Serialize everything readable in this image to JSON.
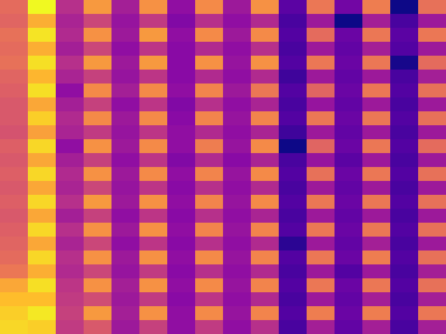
{
  "chart_data": {
    "type": "heatmap",
    "color": "plasma",
    "tick_labels": false,
    "cells": [
      [
        0.62,
        1.0,
        0.42,
        0.76,
        0.36,
        0.74,
        0.3,
        0.72,
        0.34,
        0.74,
        0.16,
        0.66,
        0.22,
        0.68,
        0.0,
        0.64
      ],
      [
        0.6,
        0.82,
        0.38,
        0.5,
        0.32,
        0.46,
        0.26,
        0.42,
        0.3,
        0.4,
        0.12,
        0.34,
        0.0,
        0.36,
        0.12,
        0.34
      ],
      [
        0.64,
        0.95,
        0.4,
        0.74,
        0.34,
        0.76,
        0.3,
        0.72,
        0.34,
        0.72,
        0.14,
        0.62,
        0.2,
        0.66,
        0.16,
        0.66
      ],
      [
        0.62,
        0.82,
        0.36,
        0.5,
        0.3,
        0.44,
        0.28,
        0.4,
        0.3,
        0.42,
        0.12,
        0.34,
        0.18,
        0.36,
        0.14,
        0.34
      ],
      [
        0.64,
        0.94,
        0.42,
        0.76,
        0.34,
        0.76,
        0.28,
        0.74,
        0.32,
        0.74,
        0.14,
        0.66,
        0.2,
        0.66,
        0.02,
        0.62
      ],
      [
        0.6,
        0.84,
        0.38,
        0.48,
        0.32,
        0.44,
        0.28,
        0.4,
        0.3,
        0.4,
        0.1,
        0.34,
        0.18,
        0.34,
        0.12,
        0.36
      ],
      [
        0.58,
        0.94,
        0.3,
        0.72,
        0.36,
        0.72,
        0.3,
        0.7,
        0.34,
        0.66,
        0.14,
        0.6,
        0.2,
        0.66,
        0.14,
        0.64
      ],
      [
        0.56,
        0.8,
        0.36,
        0.48,
        0.3,
        0.44,
        0.26,
        0.42,
        0.3,
        0.38,
        0.12,
        0.32,
        0.18,
        0.34,
        0.12,
        0.34
      ],
      [
        0.56,
        0.9,
        0.4,
        0.72,
        0.34,
        0.72,
        0.28,
        0.7,
        0.32,
        0.7,
        0.14,
        0.66,
        0.2,
        0.66,
        0.14,
        0.64
      ],
      [
        0.54,
        0.78,
        0.38,
        0.46,
        0.32,
        0.44,
        0.3,
        0.4,
        0.3,
        0.38,
        0.1,
        0.34,
        0.18,
        0.34,
        0.12,
        0.34
      ],
      [
        0.58,
        0.92,
        0.3,
        0.74,
        0.34,
        0.72,
        0.3,
        0.68,
        0.32,
        0.72,
        0.0,
        0.6,
        0.2,
        0.66,
        0.14,
        0.62
      ],
      [
        0.56,
        0.8,
        0.36,
        0.48,
        0.3,
        0.44,
        0.26,
        0.4,
        0.28,
        0.38,
        0.12,
        0.32,
        0.16,
        0.34,
        0.12,
        0.34
      ],
      [
        0.58,
        0.92,
        0.4,
        0.74,
        0.34,
        0.72,
        0.3,
        0.7,
        0.32,
        0.72,
        0.14,
        0.64,
        0.2,
        0.66,
        0.14,
        0.64
      ],
      [
        0.56,
        0.8,
        0.38,
        0.5,
        0.32,
        0.44,
        0.28,
        0.42,
        0.3,
        0.4,
        0.12,
        0.34,
        0.18,
        0.34,
        0.12,
        0.34
      ],
      [
        0.58,
        0.92,
        0.42,
        0.76,
        0.34,
        0.74,
        0.3,
        0.7,
        0.32,
        0.72,
        0.14,
        0.66,
        0.2,
        0.66,
        0.14,
        0.64
      ],
      [
        0.56,
        0.8,
        0.36,
        0.48,
        0.3,
        0.44,
        0.28,
        0.42,
        0.3,
        0.38,
        0.12,
        0.34,
        0.18,
        0.34,
        0.12,
        0.34
      ],
      [
        0.58,
        0.92,
        0.42,
        0.74,
        0.34,
        0.74,
        0.3,
        0.7,
        0.32,
        0.7,
        0.14,
        0.66,
        0.2,
        0.66,
        0.14,
        0.64
      ],
      [
        0.6,
        0.8,
        0.38,
        0.5,
        0.3,
        0.44,
        0.28,
        0.42,
        0.3,
        0.4,
        0.06,
        0.34,
        0.18,
        0.36,
        0.12,
        0.34
      ],
      [
        0.62,
        0.92,
        0.42,
        0.74,
        0.34,
        0.74,
        0.3,
        0.72,
        0.32,
        0.7,
        0.14,
        0.66,
        0.2,
        0.68,
        0.14,
        0.64
      ],
      [
        0.66,
        0.82,
        0.4,
        0.5,
        0.32,
        0.46,
        0.28,
        0.42,
        0.3,
        0.4,
        0.12,
        0.34,
        0.14,
        0.34,
        0.12,
        0.36
      ],
      [
        0.8,
        0.94,
        0.44,
        0.74,
        0.36,
        0.74,
        0.3,
        0.72,
        0.32,
        0.7,
        0.14,
        0.66,
        0.2,
        0.66,
        0.14,
        0.64
      ],
      [
        0.86,
        0.86,
        0.46,
        0.52,
        0.34,
        0.46,
        0.28,
        0.44,
        0.3,
        0.4,
        0.12,
        0.34,
        0.18,
        0.36,
        0.12,
        0.36
      ],
      [
        0.9,
        0.96,
        0.48,
        0.76,
        0.36,
        0.74,
        0.3,
        0.72,
        0.32,
        0.7,
        0.14,
        0.68,
        0.2,
        0.68,
        0.14,
        0.66
      ],
      [
        0.92,
        0.9,
        0.46,
        0.56,
        0.34,
        0.48,
        0.3,
        0.46,
        0.3,
        0.42,
        0.12,
        0.36,
        0.18,
        0.36,
        0.12,
        0.36
      ]
    ]
  }
}
